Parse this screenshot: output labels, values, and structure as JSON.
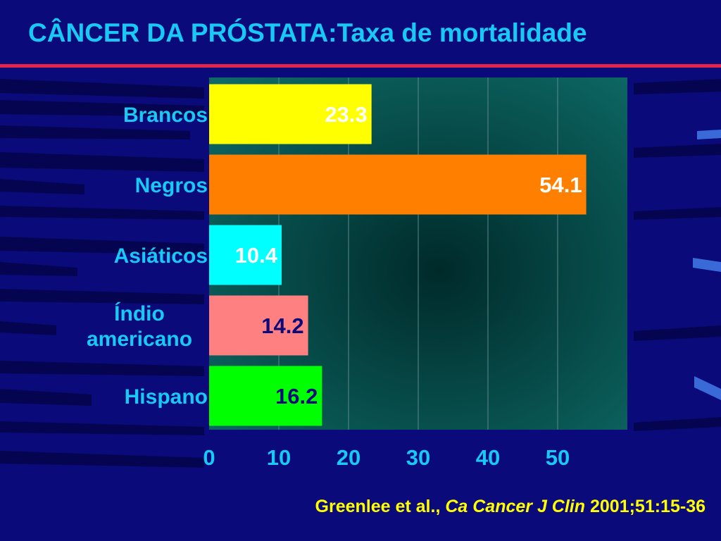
{
  "title": "CÂNCER DA PRÓSTATA:Taxa de mortalidade",
  "citation": {
    "authors": "Greenlee et al.,",
    "journal": "Ca Cancer J Clin",
    "ref": "2001;51:15-36"
  },
  "colors": {
    "background": "#0a0a7a",
    "title": "#19c9f5",
    "rule": "#e0254a",
    "label": "#19c9f5",
    "citation": "#ffff00"
  },
  "chart_data": {
    "type": "bar",
    "orientation": "horizontal",
    "categories": [
      [
        "Brancos"
      ],
      [
        "Negros"
      ],
      [
        "Asiáticos"
      ],
      [
        "Índio",
        "americano"
      ],
      [
        "Hispano"
      ]
    ],
    "values": [
      23.3,
      54.1,
      10.4,
      14.2,
      16.2
    ],
    "value_labels": [
      "23.3",
      "54.1",
      "10.4",
      "14.2",
      "16.2"
    ],
    "bar_colors": [
      "#ffff00",
      "#ff8000",
      "#00ffff",
      "#ff8080",
      "#00ff00"
    ],
    "value_label_colors": [
      "#ffffff",
      "#ffffff",
      "#ffffff",
      "#0a0a7a",
      "#0a0a7a"
    ],
    "xticks": [
      0,
      10,
      20,
      30,
      40,
      50
    ],
    "xlim": [
      0,
      60
    ],
    "grid": true
  }
}
